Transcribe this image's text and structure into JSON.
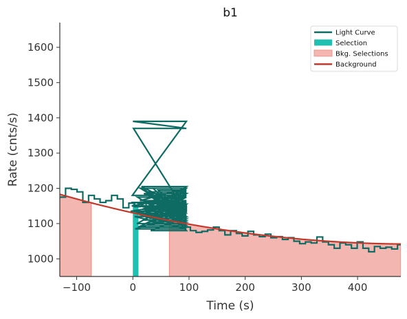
{
  "chart_data": {
    "type": "line",
    "title": "b1",
    "xlabel": "Time (s)",
    "ylabel": "Rate (cnts/s)",
    "xlim": [
      -130,
      477
    ],
    "ylim": [
      950,
      1670
    ],
    "xticks": [
      -100,
      0,
      100,
      200,
      300,
      400
    ],
    "yticks": [
      1000,
      1100,
      1200,
      1300,
      1400,
      1500,
      1600
    ],
    "legend_position": "top-right",
    "colors": {
      "light_curve": "#0e6b63",
      "selection": "#1fbfb2",
      "bkg_selection_fill": "#f4b6b0",
      "bkg_selection_edge": "#e8877f",
      "background": "#c0392b"
    },
    "legend": [
      {
        "label": "Light Curve",
        "kind": "line",
        "color": "#0e6b63"
      },
      {
        "label": "Selection",
        "kind": "patch",
        "color": "#1fbfb2"
      },
      {
        "label": "Bkg. Selections",
        "kind": "patch",
        "color": "#f4b6b0"
      },
      {
        "label": "Background",
        "kind": "line",
        "color": "#c0392b"
      }
    ],
    "selection": [
      [
        0,
        10
      ]
    ],
    "bkg_selections": [
      [
        -130,
        -74
      ],
      [
        65,
        477
      ]
    ],
    "background_poly": [
      1130.5,
      -0.357,
      0.00036
    ],
    "light_curve": {
      "coarse_bin": 10.24,
      "coarse_start": -130,
      "coarse_values_before": [
        1175,
        1200,
        1197,
        1190,
        1160,
        1180,
        1170,
        1160,
        1165,
        1180,
        1170,
        1145,
        1158,
        1148,
        1150,
        1162,
        1145,
        1145,
        1155,
        1150,
        1155,
        1152
      ],
      "fine_bin": 1.024,
      "fine_start": -5,
      "fine_values": [
        1135,
        1160,
        1150,
        1180,
        1390,
        1370,
        1130,
        1120,
        1085,
        1130,
        1160,
        1100,
        1175,
        1090,
        1150,
        1125,
        1165,
        1200,
        1120,
        1205,
        1140,
        1200,
        1110,
        1185,
        1150,
        1120,
        1100,
        1160,
        1190,
        1095,
        1120,
        1180,
        1115,
        1150,
        1190,
        1080,
        1120,
        1165,
        1105,
        1200,
        1115,
        1145,
        1175,
        1110,
        1150,
        1185,
        1100,
        1155,
        1195,
        1120,
        1140,
        1165,
        1120,
        1135,
        1160
      ],
      "coarse_start_after": 51.2,
      "coarse_values_after": [
        1105,
        1102,
        1100,
        1098,
        1090,
        1080,
        1075,
        1078,
        1082,
        1090,
        1080,
        1068,
        1080,
        1072,
        1065,
        1078,
        1068,
        1063,
        1070,
        1060,
        1063,
        1055,
        1060,
        1050,
        1043,
        1048,
        1045,
        1062,
        1048,
        1040,
        1030,
        1045,
        1040,
        1030,
        1048,
        1030,
        1020,
        1035,
        1030,
        1033,
        1028,
        1040,
        1012,
        1025,
        1018,
        1028,
        1030,
        1015,
        1010,
        1035
      ]
    }
  }
}
